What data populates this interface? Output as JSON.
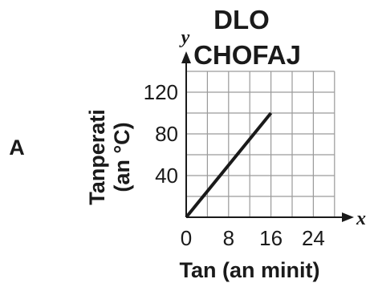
{
  "option_label": "A",
  "chart_data": {
    "type": "line",
    "title_lines": [
      "DLO",
      "CHOFAJ"
    ],
    "xlabel": "Tan (an minit)",
    "ylabel_lines": [
      "Tanperati",
      "(an °C)"
    ],
    "x_axis_letter": "x",
    "y_axis_letter": "y",
    "xlim": [
      0,
      28
    ],
    "ylim": [
      0,
      140
    ],
    "x_ticks": [
      {
        "value": 0,
        "label": "0"
      },
      {
        "value": 8,
        "label": "8"
      },
      {
        "value": 16,
        "label": "16"
      },
      {
        "value": 24,
        "label": "24"
      }
    ],
    "y_ticks": [
      {
        "value": 40,
        "label": "40"
      },
      {
        "value": 80,
        "label": "80"
      },
      {
        "value": 120,
        "label": "120"
      }
    ],
    "grid": true,
    "grid_x_step": 4,
    "grid_y_step": 20,
    "series": [
      {
        "color": "#1a1a1a",
        "x": [
          0,
          16
        ],
        "y": [
          0,
          100
        ]
      }
    ]
  }
}
